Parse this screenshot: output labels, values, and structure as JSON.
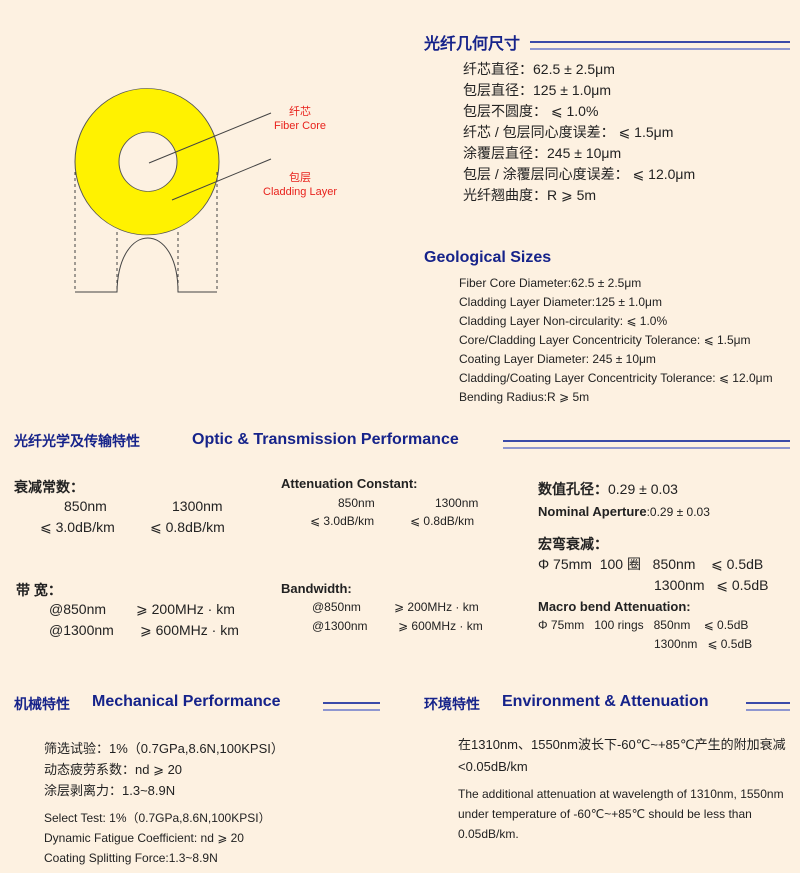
{
  "colors": {
    "heading": "#16238a",
    "background": "#fdf1e1",
    "fiber_yellow": "#fff200",
    "label_red": "#e8221c"
  },
  "diagram": {
    "core_cn": "纤芯",
    "core_en": "Fiber Core",
    "cladding_cn": "包层",
    "cladding_en": "Cladding Layer"
  },
  "geometry_cn": {
    "title": "光纤几何尺寸",
    "items": [
      "纤芯直径：62.5 ± 2.5μm",
      "包层直径：125 ± 1.0μm",
      "包层不圆度：  ⩽ 1.0%",
      "纤芯 / 包层同心度误差：  ⩽ 1.5μm",
      "涂覆层直径：245 ± 10μm",
      "包层 / 涂覆层同心度误差：  ⩽ 12.0μm",
      "光纤翘曲度：R ⩾ 5m"
    ]
  },
  "geometry_en": {
    "title": "Geological Sizes",
    "items": [
      "Fiber Core Diameter:62.5 ± 2.5μm",
      "Cladding Layer Diameter:125 ± 1.0μm",
      "Cladding Layer Non-circularity: ⩽ 1.0%",
      "Core/Cladding Layer Concentricity Tolerance: ⩽ 1.5μm",
      "Coating Layer Diameter: 245 ± 10μm",
      "Cladding/Coating Layer Concentricity Tolerance: ⩽ 12.0μm",
      "Bending Radius:R ⩾ 5m"
    ]
  },
  "optic": {
    "title_cn": "光纤光学及传输特性",
    "title_en": "Optic & Transmission Performance",
    "atten_cn": {
      "label": "衰减常数：",
      "w1": "850nm",
      "w2": "1300nm",
      "v1": "⩽ 3.0dB/km",
      "v2": "⩽ 0.8dB/km"
    },
    "atten_en": {
      "label": "Attenuation Constant:",
      "w1": "850nm",
      "w2": "1300nm",
      "v1": "⩽ 3.0dB/km",
      "v2": "⩽ 0.8dB/km"
    },
    "bw_cn": {
      "label": "带   宽：",
      "r1a": "@850nm",
      "r1b": "⩾ 200MHz · km",
      "r2a": "@1300nm",
      "r2b": "⩾ 600MHz · km"
    },
    "bw_en": {
      "label": "Bandwidth:",
      "r1a": "@850nm",
      "r1b": "⩾ 200MHz · km",
      "r2a": "@1300nm",
      "r2b": "⩾ 600MHz · km"
    },
    "na_cn_label": "数值孔径：",
    "na_cn_value": "0.29 ± 0.03",
    "na_en_label": "Nominal Aperture",
    "na_en_value": ":0.29 ± 0.03",
    "macro_cn": {
      "label": "宏弯衰减：",
      "r1": "Φ 75mm  100 圈   850nm    ⩽ 0.5dB",
      "r2": "1300nm   ⩽ 0.5dB"
    },
    "macro_en": {
      "label": "Macro bend Attenuation:",
      "r1": "Φ 75mm   100 rings   850nm    ⩽ 0.5dB",
      "r2": "1300nm   ⩽ 0.5dB"
    }
  },
  "mech": {
    "title_cn": "机械特性",
    "title_en": "Mechanical Performance",
    "cn": [
      "筛选试验：1%（0.7GPa,8.6N,100KPSI）",
      "动态疲劳系数：nd ⩾ 20",
      "涂层剥离力：1.3~8.9N"
    ],
    "en": [
      "Select Test: 1%（0.7GPa,8.6N,100KPSI）",
      "Dynamic Fatigue Coefficient: nd ⩾ 20",
      "Coating Splitting Force:1.3~8.9N"
    ]
  },
  "env": {
    "title_cn": "环境特性",
    "title_en": "Environment & Attenuation",
    "cn": "在1310nm、1550nm波长下-60℃~+85℃产生的附加衰减<0.05dB/km",
    "en": "The additional attenuation at wavelength of 1310nm, 1550nm under temperature of -60℃~+85℃ should be less than 0.05dB/km."
  }
}
